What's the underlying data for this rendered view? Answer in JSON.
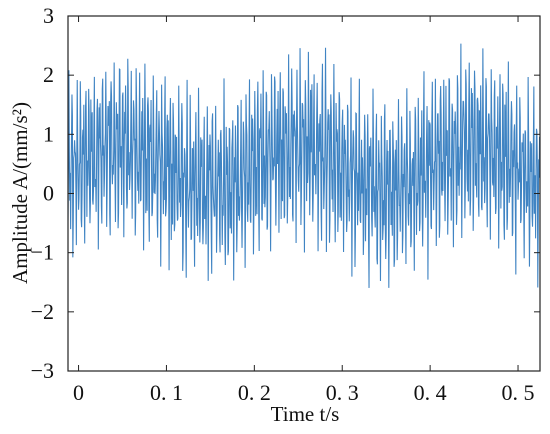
{
  "chart_data": {
    "type": "line",
    "title": "",
    "xlabel": "Time t/s",
    "ylabel": "Amplitude A/(mm/s²)",
    "xlim": [
      -0.012,
      0.525
    ],
    "ylim": [
      -3,
      3
    ],
    "xticks": [
      0,
      0.1,
      0.2,
      0.3,
      0.4,
      0.5
    ],
    "xtick_labels": [
      "0",
      "0. 1",
      "0. 2",
      "0. 3",
      "0. 4",
      "0. 5"
    ],
    "yticks": [
      -3,
      -2,
      -1,
      0,
      1,
      2,
      3
    ],
    "ytick_labels": [
      "−3",
      "−2",
      "−1",
      "0",
      "1",
      "2",
      "3"
    ],
    "grid": false,
    "legend": "none",
    "series": [
      {
        "color": "#1f6fb8",
        "sampling_interval_s": 0.0005,
        "x_start": -0.012,
        "samples": 1074,
        "components": [
          {
            "kind": "offset",
            "value": 0.45
          },
          {
            "kind": "sine",
            "freq_hz": 5,
            "amp": 0.35
          },
          {
            "kind": "sine",
            "freq_hz": 312,
            "amp": 0.9
          },
          {
            "kind": "sine",
            "freq_hz": 520,
            "amp": 0.55
          },
          {
            "kind": "sine",
            "freq_hz": 760,
            "amp": 0.35
          },
          {
            "kind": "noise",
            "amp": 0.3
          }
        ],
        "y_min": -2.2,
        "y_max": 2.9
      }
    ]
  }
}
